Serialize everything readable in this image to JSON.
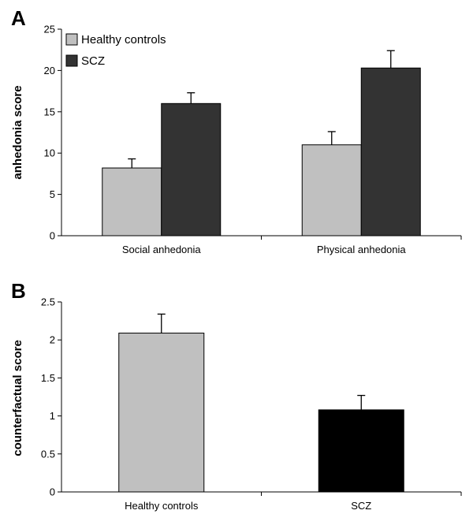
{
  "chart_data": [
    {
      "type": "bar",
      "panel_label": "A",
      "ylabel": "anhedonia score",
      "categories": [
        "Social anhedonia",
        "Physical anhedonia"
      ],
      "ylim": [
        0,
        25
      ],
      "yticks": [
        0,
        5,
        10,
        15,
        20,
        25
      ],
      "legend": "top-left",
      "series": [
        {
          "name": "Healthy controls",
          "values": [
            8.2,
            11.0
          ],
          "errors": [
            1.1,
            1.6
          ],
          "color": "#c0c0c0"
        },
        {
          "name": "SCZ",
          "values": [
            16.0,
            20.3
          ],
          "errors": [
            1.3,
            2.1
          ],
          "color": "#333333"
        }
      ]
    },
    {
      "type": "bar",
      "panel_label": "B",
      "ylabel": "counterfactual score",
      "categories": [
        "Healthy controls",
        "SCZ"
      ],
      "ylim": [
        0,
        2.5
      ],
      "yticks": [
        0,
        0.5,
        1,
        1.5,
        2,
        2.5
      ],
      "series": [
        {
          "values": [
            2.09,
            1.08
          ],
          "errors": [
            0.25,
            0.19
          ],
          "colors": [
            "#c0c0c0",
            "#000000"
          ]
        }
      ]
    }
  ]
}
